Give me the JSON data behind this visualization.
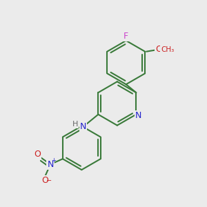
{
  "bg_color": "#ebebeb",
  "bond_color": "#3a7a3a",
  "bond_width": 1.5,
  "atom_colors": {
    "F": "#cc44cc",
    "N": "#2222cc",
    "O": "#cc2222",
    "C": "#3a7a3a"
  },
  "font_size": 9,
  "font_size_small": 7
}
